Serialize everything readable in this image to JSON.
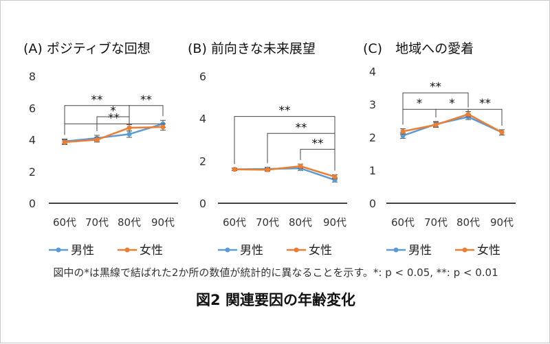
{
  "chart_data": [
    {
      "type": "line",
      "title": "(A) ポジティブな回想",
      "categories": [
        "60代",
        "70代",
        "80代",
        "90代"
      ],
      "ylim": [
        0,
        8
      ],
      "yticks": [
        "0",
        "2",
        "4",
        "6",
        "8"
      ],
      "series": [
        {
          "name": "男性",
          "color": "#5b9bd5",
          "values": [
            3.9,
            4.1,
            4.35,
            5.0
          ],
          "errors": [
            0.15,
            0.18,
            0.2,
            0.22
          ]
        },
        {
          "name": "女性",
          "color": "#ed7d31",
          "values": [
            3.85,
            4.0,
            4.75,
            4.8
          ],
          "errors": [
            0.15,
            0.15,
            0.2,
            0.2
          ]
        }
      ],
      "significance": [
        {
          "from": 0,
          "to": 3,
          "label": "**",
          "level": 5.0
        },
        {
          "from": 0,
          "to": 2,
          "label": "**",
          "level": 6.15
        },
        {
          "from": 2,
          "to": 3,
          "label": "**",
          "level": 6.15
        },
        {
          "from": 1,
          "to": 2,
          "label": "*",
          "level": 5.45
        }
      ],
      "legend": "bottom",
      "grid": false
    },
    {
      "type": "line",
      "title": "(B) 前向きな未来展望",
      "categories": [
        "60代",
        "70代",
        "80代",
        "90代"
      ],
      "ylim": [
        0,
        6
      ],
      "yticks": [
        "0",
        "2",
        "4",
        "6"
      ],
      "series": [
        {
          "name": "男性",
          "color": "#5b9bd5",
          "values": [
            1.6,
            1.62,
            1.65,
            1.1
          ],
          "errors": [
            0.06,
            0.08,
            0.1,
            0.1
          ]
        },
        {
          "name": "女性",
          "color": "#ed7d31",
          "values": [
            1.6,
            1.58,
            1.75,
            1.25
          ],
          "errors": [
            0.06,
            0.08,
            0.1,
            0.1
          ]
        }
      ],
      "significance": [
        {
          "from": 0,
          "to": 3,
          "label": "**",
          "level": 4.1
        },
        {
          "from": 1,
          "to": 3,
          "label": "**",
          "level": 3.3
        },
        {
          "from": 2,
          "to": 3,
          "label": "**",
          "level": 2.55
        }
      ],
      "legend": "bottom",
      "grid": false
    },
    {
      "type": "line",
      "title": "(C)　地域への愛着",
      "categories": [
        "60代",
        "70代",
        "80代",
        "90代"
      ],
      "ylim": [
        0,
        4
      ],
      "yticks": [
        "0",
        "1",
        "2",
        "3",
        "4"
      ],
      "series": [
        {
          "name": "男性",
          "color": "#5b9bd5",
          "values": [
            2.05,
            2.4,
            2.62,
            2.15
          ],
          "errors": [
            0.08,
            0.08,
            0.08,
            0.08
          ]
        },
        {
          "name": "女性",
          "color": "#ed7d31",
          "values": [
            2.18,
            2.38,
            2.7,
            2.15
          ],
          "errors": [
            0.08,
            0.08,
            0.08,
            0.08
          ]
        }
      ],
      "significance": [
        {
          "from": 0,
          "to": 2,
          "label": "**",
          "level": 3.35
        },
        {
          "from": 0,
          "to": 1,
          "label": "*",
          "level": 2.85
        },
        {
          "from": 1,
          "to": 2,
          "label": "*",
          "level": 2.85
        },
        {
          "from": 2,
          "to": 3,
          "label": "**",
          "level": 2.85
        }
      ],
      "legend": "bottom",
      "grid": false
    }
  ],
  "note": "図中の*は黒線で結ばれた2か所の数値が統計的に異なることを示す。*: p < 0.05, **: p < 0.01",
  "caption": "図2 関連要因の年齢変化"
}
